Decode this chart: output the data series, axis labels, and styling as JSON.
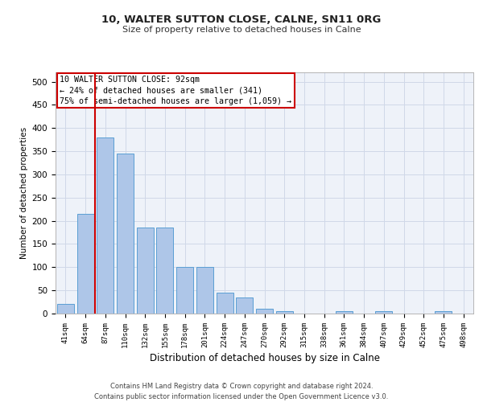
{
  "title1": "10, WALTER SUTTON CLOSE, CALNE, SN11 0RG",
  "title2": "Size of property relative to detached houses in Calne",
  "xlabel": "Distribution of detached houses by size in Calne",
  "ylabel": "Number of detached properties",
  "bar_labels": [
    "41sqm",
    "64sqm",
    "87sqm",
    "110sqm",
    "132sqm",
    "155sqm",
    "178sqm",
    "201sqm",
    "224sqm",
    "247sqm",
    "270sqm",
    "292sqm",
    "315sqm",
    "338sqm",
    "361sqm",
    "384sqm",
    "407sqm",
    "429sqm",
    "452sqm",
    "475sqm",
    "498sqm"
  ],
  "bar_values": [
    20,
    215,
    380,
    345,
    185,
    185,
    100,
    100,
    45,
    35,
    10,
    5,
    0,
    0,
    5,
    0,
    5,
    0,
    0,
    5,
    0
  ],
  "bar_color": "#aec6e8",
  "bar_edge_color": "#5a9fd4",
  "annotation_title": "10 WALTER SUTTON CLOSE: 92sqm",
  "annotation_line1": "← 24% of detached houses are smaller (341)",
  "annotation_line2": "75% of semi-detached houses are larger (1,059) →",
  "annotation_box_color": "#ffffff",
  "annotation_box_edge": "#cc0000",
  "vline_color": "#cc0000",
  "grid_color": "#d0d8e8",
  "background_color": "#eef2f9",
  "ylim": [
    0,
    520
  ],
  "yticks": [
    0,
    50,
    100,
    150,
    200,
    250,
    300,
    350,
    400,
    450,
    500
  ],
  "footer1": "Contains HM Land Registry data © Crown copyright and database right 2024.",
  "footer2": "Contains public sector information licensed under the Open Government Licence v3.0."
}
